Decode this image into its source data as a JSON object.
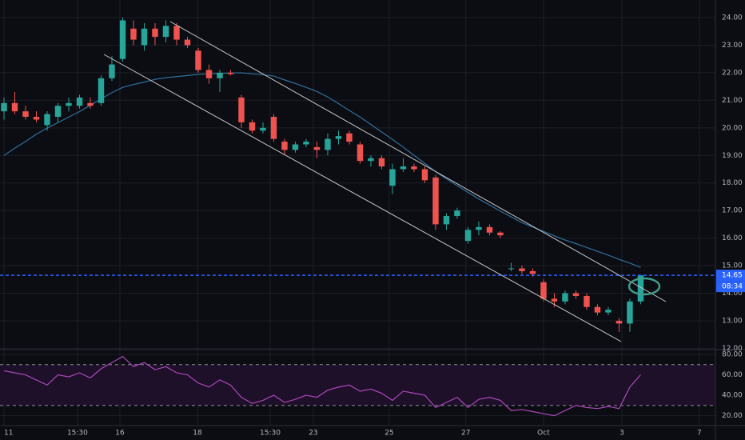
{
  "chart_data": [
    {
      "type": "candlestick",
      "x": [
        0,
        1,
        2,
        3,
        4,
        5,
        6,
        7,
        8,
        9,
        10,
        11,
        12,
        13,
        14,
        15,
        16,
        17,
        18,
        19,
        20,
        21,
        22,
        23,
        24,
        25,
        26,
        27,
        28,
        29,
        30,
        31,
        32,
        33,
        34,
        35,
        36,
        37,
        38,
        39,
        40,
        41,
        42,
        43,
        44,
        45,
        46,
        47,
        48,
        49,
        50,
        51,
        52,
        53,
        54,
        55,
        56,
        57,
        58,
        59
      ],
      "open": [
        20.6,
        20.9,
        20.6,
        20.4,
        20.1,
        20.4,
        20.8,
        20.8,
        20.9,
        20.9,
        21.8,
        22.5,
        23.6,
        23.0,
        23.6,
        23.3,
        23.7,
        23.2,
        22.8,
        22.1,
        21.8,
        22.0,
        21.1,
        20.2,
        19.9,
        20.4,
        19.5,
        19.2,
        19.4,
        19.3,
        19.2,
        19.6,
        19.8,
        19.4,
        18.8,
        18.9,
        17.9,
        18.5,
        18.6,
        18.5,
        18.2,
        16.5,
        16.8,
        15.9,
        16.3,
        16.4,
        16.2,
        14.9,
        14.9,
        14.8,
        14.4,
        13.8,
        13.7,
        14.0,
        13.9,
        13.5,
        13.3,
        13.0,
        12.9,
        13.7
      ],
      "high": [
        21.1,
        21.3,
        20.8,
        20.6,
        20.6,
        20.9,
        21.1,
        21.2,
        21.1,
        21.9,
        22.6,
        24.0,
        23.9,
        23.8,
        23.8,
        23.9,
        23.8,
        23.3,
        22.9,
        22.3,
        22.1,
        22.1,
        21.2,
        20.3,
        20.2,
        20.5,
        19.6,
        19.5,
        19.6,
        19.5,
        19.8,
        19.9,
        19.9,
        19.5,
        19.0,
        19.0,
        18.7,
        18.9,
        18.7,
        18.6,
        18.3,
        16.9,
        17.1,
        16.4,
        16.6,
        16.5,
        16.25,
        15.1,
        15.0,
        14.9,
        14.5,
        14.0,
        14.1,
        14.1,
        14.0,
        13.6,
        13.5,
        13.1,
        13.8,
        14.65
      ],
      "low": [
        20.3,
        20.5,
        20.3,
        20.2,
        19.9,
        20.2,
        20.6,
        20.7,
        20.7,
        20.8,
        21.7,
        22.4,
        23.0,
        22.8,
        23.0,
        23.1,
        23.0,
        22.9,
        22.0,
        21.6,
        21.3,
        21.9,
        20.0,
        19.8,
        19.8,
        19.5,
        19.0,
        19.1,
        19.3,
        18.9,
        19.0,
        19.4,
        19.4,
        18.7,
        18.6,
        18.5,
        17.6,
        18.4,
        18.4,
        18.0,
        16.3,
        16.3,
        16.7,
        15.8,
        16.1,
        16.1,
        16.0,
        14.8,
        14.7,
        14.6,
        13.7,
        13.5,
        13.6,
        13.8,
        13.4,
        13.2,
        13.2,
        12.6,
        12.6,
        13.6
      ],
      "close": [
        20.9,
        20.6,
        20.4,
        20.3,
        20.5,
        20.8,
        20.9,
        21.1,
        20.8,
        21.8,
        22.3,
        23.9,
        23.2,
        23.6,
        23.3,
        23.7,
        23.2,
        23.0,
        22.1,
        21.8,
        22.0,
        21.95,
        20.2,
        19.9,
        20.0,
        19.6,
        19.2,
        19.4,
        19.5,
        19.2,
        19.6,
        19.7,
        19.5,
        18.8,
        18.9,
        18.6,
        18.5,
        18.6,
        18.5,
        18.1,
        16.5,
        16.8,
        17.0,
        16.3,
        16.4,
        16.2,
        16.1,
        14.9,
        14.8,
        14.7,
        13.8,
        13.7,
        14.0,
        13.9,
        13.5,
        13.3,
        13.4,
        12.9,
        13.7,
        14.65
      ],
      "up_color": "#26a69a",
      "down_color": "#ef5350",
      "overlays": [
        {
          "color": "#2f6f9f",
          "values": [
            19.0,
            19.26,
            19.51,
            19.77,
            19.99,
            20.19,
            20.39,
            20.59,
            20.82,
            21.05,
            21.28,
            21.47,
            21.57,
            21.66,
            21.76,
            21.82,
            21.86,
            21.9,
            21.94,
            21.96,
            21.98,
            21.99,
            22.0,
            21.96,
            21.93,
            21.88,
            21.74,
            21.61,
            21.47,
            21.32,
            21.12,
            20.88,
            20.63,
            20.39,
            20.12,
            19.85,
            19.58,
            19.3,
            19.0,
            18.71,
            18.41,
            18.15,
            17.9,
            17.66,
            17.42,
            17.2,
            16.98,
            16.77,
            16.56,
            16.4,
            16.24,
            16.08,
            15.93,
            15.8,
            15.66,
            15.52,
            15.38,
            15.23,
            15.09,
            14.94
          ]
        }
      ],
      "xlim": [
        -0.37,
        65.93
      ],
      "xticks": [
        {
          "value": 0,
          "label": "11"
        },
        {
          "value": 6.81,
          "label": "15:30"
        },
        {
          "value": 10.74,
          "label": "16"
        },
        {
          "value": 17.93,
          "label": "18"
        },
        {
          "value": 24.67,
          "label": "15:30"
        },
        {
          "value": 28.67,
          "label": "23"
        },
        {
          "value": 35.7,
          "label": "25"
        },
        {
          "value": 42.8,
          "label": "27"
        },
        {
          "value": 50,
          "label": "Oct"
        },
        {
          "value": 57.26,
          "label": "3"
        },
        {
          "value": 64.44,
          "label": "7"
        }
      ],
      "ylim": [
        11.954,
        24.639
      ],
      "yticks": [
        {
          "value": 12,
          "label": "12.00"
        },
        {
          "value": 13,
          "label": "13.00"
        },
        {
          "value": 14,
          "label": "14.00"
        },
        {
          "value": 15,
          "label": "15.00"
        },
        {
          "value": 16,
          "label": "16.00"
        },
        {
          "value": 17,
          "label": "17.00"
        },
        {
          "value": 18,
          "label": "18.00"
        },
        {
          "value": 19,
          "label": "19.00"
        },
        {
          "value": 20,
          "label": "20.00"
        },
        {
          "value": 21,
          "label": "21.00"
        },
        {
          "value": 22,
          "label": "22.00"
        },
        {
          "value": 23,
          "label": "23.00"
        },
        {
          "value": 24,
          "label": "24.00"
        }
      ],
      "grid": true,
      "last_price": 14.65,
      "last_price_color": "#2962ff",
      "countdown": "08:34"
    },
    {
      "type": "line",
      "values": [
        64,
        62,
        60,
        55,
        50,
        60,
        58,
        62,
        57,
        66,
        72,
        78,
        68,
        72,
        65,
        68,
        62,
        60,
        52,
        48,
        55,
        50,
        38,
        32,
        35,
        40,
        33,
        36,
        40,
        38,
        45,
        48,
        50,
        44,
        46,
        42,
        35,
        44,
        42,
        40,
        28,
        33,
        38,
        28,
        36,
        38,
        35,
        25,
        26,
        24,
        22,
        20,
        25,
        30,
        28,
        27,
        29,
        27,
        48,
        60
      ],
      "color": "#ab47bc",
      "bands": [
        30,
        70
      ],
      "ylim": [
        10.3,
        84.7
      ],
      "yticks": [
        {
          "value": 20,
          "label": "20.00"
        },
        {
          "value": 40,
          "label": "40.00"
        },
        {
          "value": 60,
          "label": "60.00"
        },
        {
          "value": 80,
          "label": "80.00"
        }
      ],
      "grid": true
    }
  ]
}
